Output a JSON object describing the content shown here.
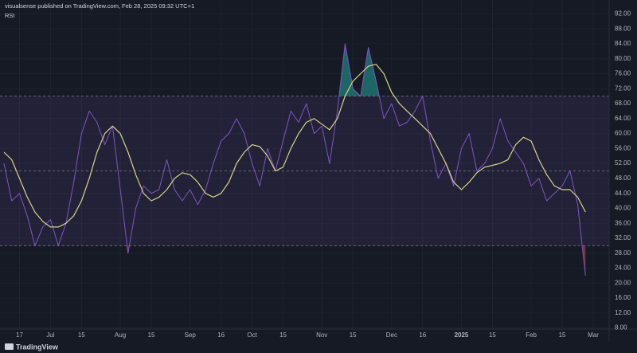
{
  "header": "visualsense published on TradingView.com, Feb 28, 2025 09:32 UTC+1",
  "footer": "TradingView",
  "chart_data": {
    "type": "line",
    "title": "RSI",
    "categories": [
      null,
      null,
      "17",
      null,
      null,
      null,
      "Jul",
      null,
      null,
      null,
      "15",
      null,
      null,
      null,
      null,
      "Aug",
      null,
      null,
      null,
      "15",
      null,
      null,
      null,
      null,
      "Sep",
      null,
      null,
      null,
      "16",
      null,
      null,
      null,
      "Oct",
      null,
      null,
      null,
      "15",
      null,
      null,
      null,
      null,
      "Nov",
      null,
      null,
      null,
      "15",
      null,
      null,
      null,
      null,
      "Dec",
      null,
      null,
      null,
      "16",
      null,
      null,
      null,
      null,
      "2025",
      null,
      null,
      null,
      "15",
      null,
      null,
      null,
      null,
      "Feb",
      null,
      null,
      null,
      "15",
      null,
      null,
      null,
      "Mar"
    ],
    "series": [
      {
        "color": "#7e57c2",
        "values": [
          52,
          42,
          44,
          38,
          30,
          35,
          37,
          30,
          36,
          47,
          60,
          66,
          63,
          57,
          62,
          45,
          28,
          40,
          46,
          44,
          45,
          53,
          45,
          42,
          45,
          41,
          45,
          52,
          58,
          60,
          64,
          60,
          52,
          46,
          56,
          50,
          58,
          66,
          63,
          68,
          60,
          62,
          52,
          66,
          84,
          72,
          70,
          83,
          74,
          64,
          68,
          62,
          63,
          66,
          70,
          58,
          48,
          52,
          46,
          56,
          60,
          50,
          52,
          56,
          64,
          58,
          55,
          52,
          46,
          48,
          42,
          44,
          46,
          50,
          41,
          22,
          null
        ]
      },
      {
        "color": "#d8d48a",
        "values": [
          55,
          53,
          48,
          43,
          39,
          36.5,
          35,
          35,
          36,
          38,
          42,
          48,
          55,
          60,
          62,
          60,
          55,
          49,
          44,
          42,
          43,
          45,
          48,
          49.5,
          49,
          47,
          44,
          43,
          44,
          47,
          52,
          55,
          57,
          56.5,
          54,
          50,
          51,
          56,
          60,
          63,
          64,
          62.5,
          61,
          64,
          70,
          74,
          76,
          78,
          78.5,
          76,
          71,
          68,
          66,
          64,
          62,
          60,
          56,
          52,
          47,
          45,
          47,
          49.5,
          51,
          51.5,
          52,
          53,
          57,
          59,
          58,
          53,
          49,
          46,
          45,
          45,
          43,
          39,
          null
        ]
      }
    ],
    "ylim": [
      6,
      94
    ],
    "yticks": [
      {
        "value": 8,
        "label": "8.00"
      },
      {
        "value": 12,
        "label": "12.00"
      },
      {
        "value": 16,
        "label": "16.00"
      },
      {
        "value": 20,
        "label": "20.00"
      },
      {
        "value": 24,
        "label": "24.00"
      },
      {
        "value": 28,
        "label": "28.00"
      },
      {
        "value": 32,
        "label": "32.00"
      },
      {
        "value": 36,
        "label": "36.00"
      },
      {
        "value": 40,
        "label": "40.00"
      },
      {
        "value": 44,
        "label": "44.00"
      },
      {
        "value": 48,
        "label": "48.00"
      },
      {
        "value": 52,
        "label": "52.00"
      },
      {
        "value": 56,
        "label": "56.00"
      },
      {
        "value": 60,
        "label": "60.00"
      },
      {
        "value": 64,
        "label": "64.00"
      },
      {
        "value": 68,
        "label": "68.00"
      },
      {
        "value": 72,
        "label": "72.00"
      },
      {
        "value": 76,
        "label": "76.00"
      },
      {
        "value": 80,
        "label": "80.00"
      },
      {
        "value": 84,
        "label": "84.00"
      },
      {
        "value": 88,
        "label": "88.00"
      },
      {
        "value": 92,
        "label": "92.00"
      }
    ],
    "upper_band": 70,
    "middle_band": 50,
    "lower_band": 30,
    "band_fill": "#7e57c2",
    "overbought_color": "#26a69a",
    "oversold_color": "#ef5350",
    "grid": true
  }
}
